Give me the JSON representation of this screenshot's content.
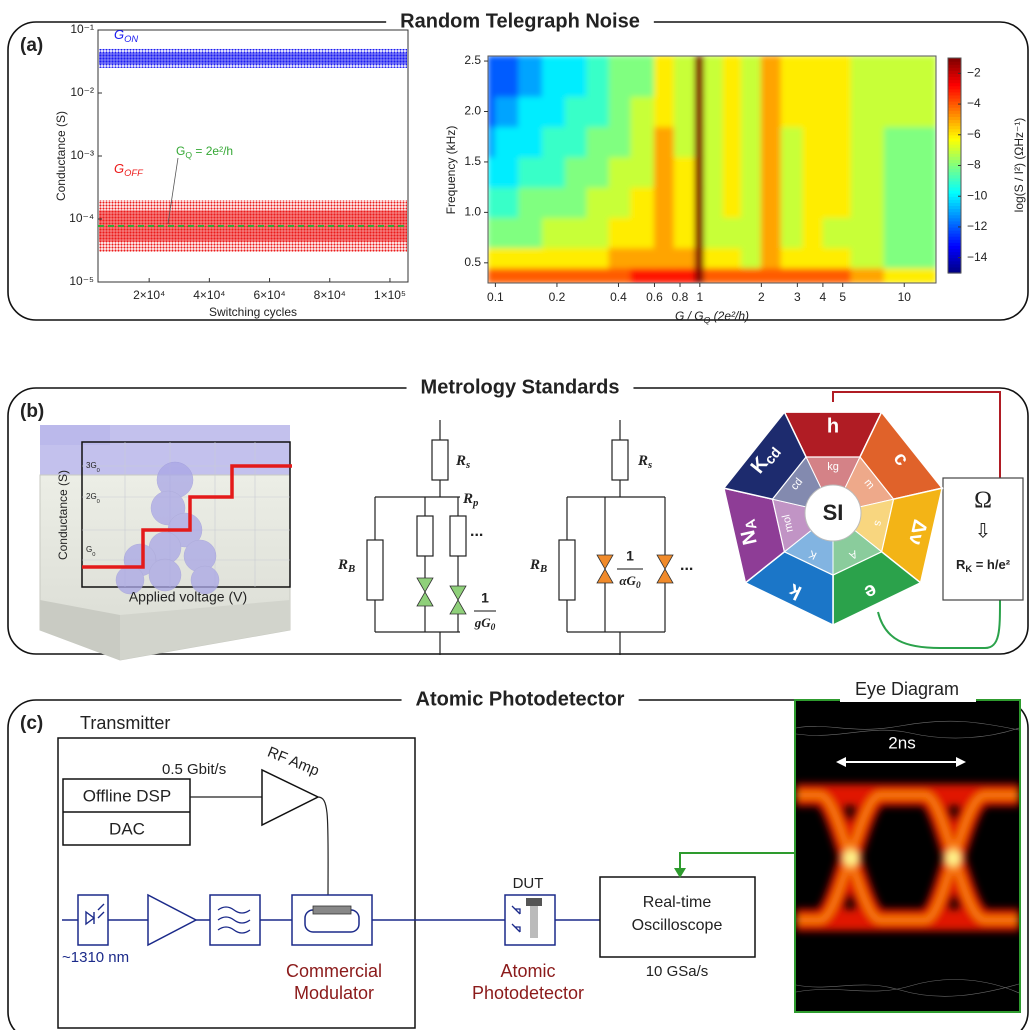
{
  "sections": [
    {
      "label": "(a)",
      "title": "Random Telegraph Noise"
    },
    {
      "label": "(b)",
      "title": "Metrology Standards"
    },
    {
      "label": "(c)",
      "title": "Atomic Photodetector"
    }
  ],
  "chart_data": [
    {
      "type": "scatter",
      "xlabel": "Switching cycles",
      "ylabel": "Conductance (S)",
      "log_y": true,
      "xlim": [
        3000,
        106000
      ],
      "xticks": [
        {
          "value": 20000,
          "label": "2×10⁴"
        },
        {
          "value": 40000,
          "label": "4×10⁴"
        },
        {
          "value": 60000,
          "label": "6×10⁴"
        },
        {
          "value": 80000,
          "label": "8×10⁴"
        },
        {
          "value": 100000,
          "label": "1×10⁵"
        }
      ],
      "ylim": [
        1e-05,
        0.1
      ],
      "yticks": [
        {
          "value": 1e-05,
          "label": "10⁻⁵"
        },
        {
          "value": 0.0001,
          "label": "10⁻⁴"
        },
        {
          "value": 0.001,
          "label": "10⁻³"
        },
        {
          "value": 0.01,
          "label": "10⁻²"
        },
        {
          "value": 0.1,
          "label": "10⁻¹"
        }
      ],
      "series": [
        {
          "name": {
            "t": "G",
            "sub": "ON"
          },
          "color": "#1c1cf0",
          "band": [
            0.025,
            0.05
          ]
        },
        {
          "name": {
            "t": "G",
            "sub": "OFF"
          },
          "color": "#ec1b1b",
          "band": [
            3e-05,
            0.0002
          ]
        }
      ],
      "reference": {
        "value": 7.75e-05,
        "color": "#35a835",
        "label": {
          "t": "G",
          "sub": "Q",
          "rest": " = 2e²/h"
        }
      }
    },
    {
      "type": "heatmap",
      "xlabel": {
        "t": "G / G",
        "sub": "Q",
        "rest": " (2e²/h)"
      },
      "ylabel": "Frequency (kHz)",
      "log_x": true,
      "xlim": [
        0.092,
        14.3
      ],
      "xticks": [
        0.1,
        0.2,
        0.4,
        0.6,
        0.8,
        1,
        2,
        3,
        4,
        5,
        10
      ],
      "ylim": [
        0.3,
        2.55
      ],
      "yticks": [
        0.5,
        {
          "value": 1,
          "label": "1.0"
        },
        1.5,
        {
          "value": 2,
          "label": "2.0"
        },
        2.5
      ],
      "colormap": "jet",
      "clim": [
        -15,
        -1
      ],
      "cticks": [
        {
          "value": -2,
          "label": "−2"
        },
        {
          "value": -4,
          "label": "−4"
        },
        {
          "value": -6,
          "label": "−6"
        },
        {
          "value": -8,
          "label": "−8"
        },
        {
          "value": -10,
          "label": "−10"
        },
        {
          "value": -12,
          "label": "−12"
        },
        {
          "value": -14,
          "label": "−14"
        }
      ],
      "colorbar_label": "log(S / I²) (ΩHz⁻¹)",
      "x_edges": [
        0.092,
        0.1,
        0.13,
        0.17,
        0.22,
        0.28,
        0.36,
        0.46,
        0.6,
        0.75,
        0.95,
        1.05,
        1.3,
        1.6,
        2,
        2.5,
        3.2,
        4,
        5.5,
        8,
        14.3
      ],
      "y_edges": [
        0.3,
        0.45,
        0.65,
        0.95,
        1.25,
        1.55,
        1.85,
        2.15,
        2.55
      ],
      "values": [
        [
          -4,
          -4,
          -4,
          -4,
          -4,
          -4,
          -4,
          -3,
          -3,
          -3,
          -1,
          -4,
          -4,
          -4,
          -4,
          -4,
          -4,
          -4,
          -5,
          -6
        ],
        [
          -6,
          -6,
          -6,
          -6,
          -6,
          -6,
          -5,
          -5,
          -5,
          -5,
          -1,
          -6,
          -6,
          -7,
          -5,
          -6,
          -6,
          -6,
          -7,
          -8
        ],
        [
          -8,
          -8,
          -8,
          -7,
          -7,
          -7,
          -6,
          -6,
          -5,
          -6,
          -1,
          -7,
          -7,
          -7,
          -5,
          -7,
          -6,
          -7,
          -7,
          -8
        ],
        [
          -9,
          -9,
          -8,
          -8,
          -8,
          -7,
          -7,
          -6,
          -5,
          -6,
          -1,
          -7,
          -6,
          -7,
          -5,
          -7,
          -6,
          -6,
          -7,
          -8
        ],
        [
          -10,
          -10,
          -9,
          -9,
          -8,
          -8,
          -7,
          -7,
          -5,
          -6,
          -1,
          -7,
          -6,
          -7,
          -5,
          -7,
          -6,
          -6,
          -7,
          -8
        ],
        [
          -11,
          -10,
          -10,
          -9,
          -9,
          -8,
          -8,
          -7,
          -5,
          -7,
          -1,
          -7,
          -6,
          -7,
          -5,
          -7,
          -6,
          -6,
          -7,
          -8
        ],
        [
          -12,
          -11,
          -10,
          -10,
          -9,
          -9,
          -8,
          -7,
          -6,
          -7,
          -1,
          -7,
          -6,
          -7,
          -5,
          -6,
          -6,
          -6,
          -7,
          -7
        ],
        [
          -12,
          -12,
          -11,
          -10,
          -10,
          -9,
          -8,
          -8,
          -6,
          -7,
          -1,
          -7,
          -6,
          -7,
          -5,
          -6,
          -6,
          -6,
          -7,
          -7
        ]
      ]
    }
  ],
  "metrology": {
    "device": {
      "ylabel": "Conductance (S)",
      "xlabel": "Applied voltage (V)",
      "levels": [
        {
          "t": "3G",
          "sub": "0"
        },
        {
          "t": "2G",
          "sub": "0"
        },
        {
          "t": "G",
          "sub": "0"
        }
      ]
    },
    "circuit_1": {
      "rs": {
        "t": "R",
        "sub": "s"
      },
      "rb": {
        "t": "R",
        "sub": "B"
      },
      "rp": {
        "t": "R",
        "sub": "p"
      },
      "ellipsis": "...",
      "num": "1",
      "den": {
        "t": "gG",
        "sub": "0"
      }
    },
    "circuit_2": {
      "rs": {
        "t": "R",
        "sub": "s"
      },
      "rb": {
        "t": "R",
        "sub": "B"
      },
      "ellipsis": "...",
      "num": "1",
      "den": {
        "t": "αG",
        "sub": "0"
      }
    },
    "si_wheel": {
      "center": "SI",
      "segments": [
        {
          "constant": "h",
          "unit": "kg",
          "color": "#b01c24"
        },
        {
          "constant": "c",
          "unit": "m",
          "color": "#e0622a"
        },
        {
          "constant": "Δν",
          "unit": "s",
          "color": "#f3b416"
        },
        {
          "constant": "e",
          "unit": "A",
          "color": "#2ba24b"
        },
        {
          "constant": "k",
          "unit": "K",
          "color": "#1b76c8"
        },
        {
          "constant": {
            "t": "N",
            "sub": "A"
          },
          "unit": "mol",
          "color": "#8e3d96"
        },
        {
          "constant": {
            "t": "K",
            "sub": "cd"
          },
          "unit": "cd",
          "color": "#1d2b6e"
        }
      ]
    },
    "resistance_box": {
      "symbol": "Ω",
      "arrow": "⇩",
      "formula": {
        "t": "R",
        "sub": "K",
        "rest": " = h/e²"
      }
    }
  },
  "photodetector": {
    "transmitter": "Transmitter",
    "bitrate": "0.5 Gbit/s",
    "rf_amp": "RF Amp",
    "dsp": "Offline DSP",
    "dac": "DAC",
    "wavelength": "~1310 nm",
    "modulator": [
      "Commercial",
      "Modulator"
    ],
    "dut": "DUT",
    "photodetector": [
      "Atomic",
      "Photodetector"
    ],
    "oscilloscope": [
      "Real-time",
      "Oscilloscope"
    ],
    "sample_rate": "10 GSa/s",
    "eye_title": "Eye Diagram",
    "eye_period": "2ns"
  }
}
